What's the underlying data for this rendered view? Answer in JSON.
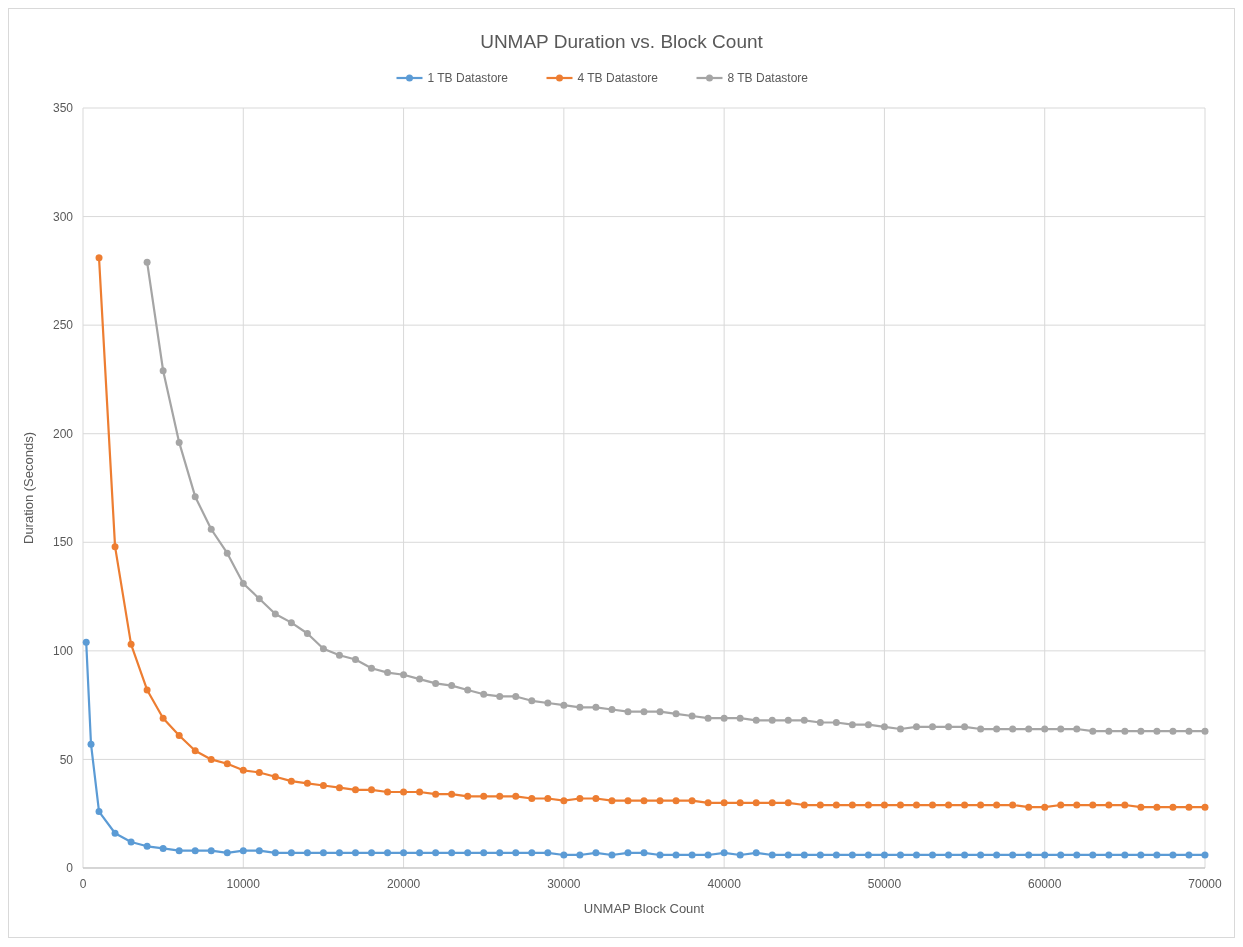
{
  "chart_data": {
    "type": "line",
    "title": "UNMAP Duration vs. Block Count",
    "xlabel": "UNMAP  Block Count",
    "ylabel": "Duration (Seconds)",
    "xlim": [
      0,
      70000
    ],
    "xticks": [
      0,
      10000,
      20000,
      30000,
      40000,
      50000,
      60000,
      70000
    ],
    "ylim": [
      0,
      350
    ],
    "yticks": [
      0,
      50,
      100,
      150,
      200,
      250,
      300,
      350
    ],
    "grid": true,
    "legend": "top",
    "marker": "circle",
    "line_style": "solid",
    "series": [
      {
        "name": "1 TB Datastore",
        "color": "#5b9bd5",
        "x": [
          200,
          500,
          1000,
          2000,
          3000,
          4000,
          5000,
          6000,
          7000,
          8000,
          9000,
          10000,
          11000,
          12000,
          13000,
          14000,
          15000,
          16000,
          17000,
          18000,
          19000,
          20000,
          21000,
          22000,
          23000,
          24000,
          25000,
          26000,
          27000,
          28000,
          29000,
          30000,
          31000,
          32000,
          33000,
          34000,
          35000,
          36000,
          37000,
          38000,
          39000,
          40000,
          41000,
          42000,
          43000,
          44000,
          45000,
          46000,
          47000,
          48000,
          49000,
          50000,
          51000,
          52000,
          53000,
          54000,
          55000,
          56000,
          57000,
          58000,
          59000,
          60000,
          61000,
          62000,
          63000,
          64000,
          65000,
          66000,
          67000,
          68000,
          69000,
          70000
        ],
        "values": [
          104,
          57,
          26,
          16,
          12,
          10,
          9,
          8,
          8,
          8,
          7,
          8,
          8,
          7,
          7,
          7,
          7,
          7,
          7,
          7,
          7,
          7,
          7,
          7,
          7,
          7,
          7,
          7,
          7,
          7,
          7,
          6,
          6,
          7,
          6,
          7,
          7,
          6,
          6,
          6,
          6,
          7,
          6,
          7,
          6,
          6,
          6,
          6,
          6,
          6,
          6,
          6,
          6,
          6,
          6,
          6,
          6,
          6,
          6,
          6,
          6,
          6,
          6,
          6,
          6,
          6,
          6,
          6,
          6,
          6,
          6,
          6
        ]
      },
      {
        "name": "4 TB Datastore",
        "color": "#ed7d31",
        "x": [
          1000,
          2000,
          3000,
          4000,
          5000,
          6000,
          7000,
          8000,
          9000,
          10000,
          11000,
          12000,
          13000,
          14000,
          15000,
          16000,
          17000,
          18000,
          19000,
          20000,
          21000,
          22000,
          23000,
          24000,
          25000,
          26000,
          27000,
          28000,
          29000,
          30000,
          31000,
          32000,
          33000,
          34000,
          35000,
          36000,
          37000,
          38000,
          39000,
          40000,
          41000,
          42000,
          43000,
          44000,
          45000,
          46000,
          47000,
          48000,
          49000,
          50000,
          51000,
          52000,
          53000,
          54000,
          55000,
          56000,
          57000,
          58000,
          59000,
          60000,
          61000,
          62000,
          63000,
          64000,
          65000,
          66000,
          67000,
          68000,
          69000,
          70000
        ],
        "values": [
          281,
          148,
          103,
          82,
          69,
          61,
          54,
          50,
          48,
          45,
          44,
          42,
          40,
          39,
          38,
          37,
          36,
          36,
          35,
          35,
          35,
          34,
          34,
          33,
          33,
          33,
          33,
          32,
          32,
          31,
          32,
          32,
          31,
          31,
          31,
          31,
          31,
          31,
          30,
          30,
          30,
          30,
          30,
          30,
          29,
          29,
          29,
          29,
          29,
          29,
          29,
          29,
          29,
          29,
          29,
          29,
          29,
          29,
          28,
          28,
          29,
          29,
          29,
          29,
          29,
          28,
          28,
          28,
          28,
          28
        ]
      },
      {
        "name": "8 TB Datastore",
        "color": "#a5a5a5",
        "x": [
          4000,
          5000,
          6000,
          7000,
          8000,
          9000,
          10000,
          11000,
          12000,
          13000,
          14000,
          15000,
          16000,
          17000,
          18000,
          19000,
          20000,
          21000,
          22000,
          23000,
          24000,
          25000,
          26000,
          27000,
          28000,
          29000,
          30000,
          31000,
          32000,
          33000,
          34000,
          35000,
          36000,
          37000,
          38000,
          39000,
          40000,
          41000,
          42000,
          43000,
          44000,
          45000,
          46000,
          47000,
          48000,
          49000,
          50000,
          51000,
          52000,
          53000,
          54000,
          55000,
          56000,
          57000,
          58000,
          59000,
          60000,
          61000,
          62000,
          63000,
          64000,
          65000,
          66000,
          67000,
          68000,
          69000,
          70000
        ],
        "values": [
          279,
          229,
          196,
          171,
          156,
          145,
          131,
          124,
          117,
          113,
          108,
          101,
          98,
          96,
          92,
          90,
          89,
          87,
          85,
          84,
          82,
          80,
          79,
          79,
          77,
          76,
          75,
          74,
          74,
          73,
          72,
          72,
          72,
          71,
          70,
          69,
          69,
          69,
          68,
          68,
          68,
          68,
          67,
          67,
          66,
          66,
          65,
          64,
          65,
          65,
          65,
          65,
          64,
          64,
          64,
          64,
          64,
          64,
          64,
          63,
          63,
          63,
          63,
          63,
          63,
          63,
          63
        ]
      }
    ]
  }
}
